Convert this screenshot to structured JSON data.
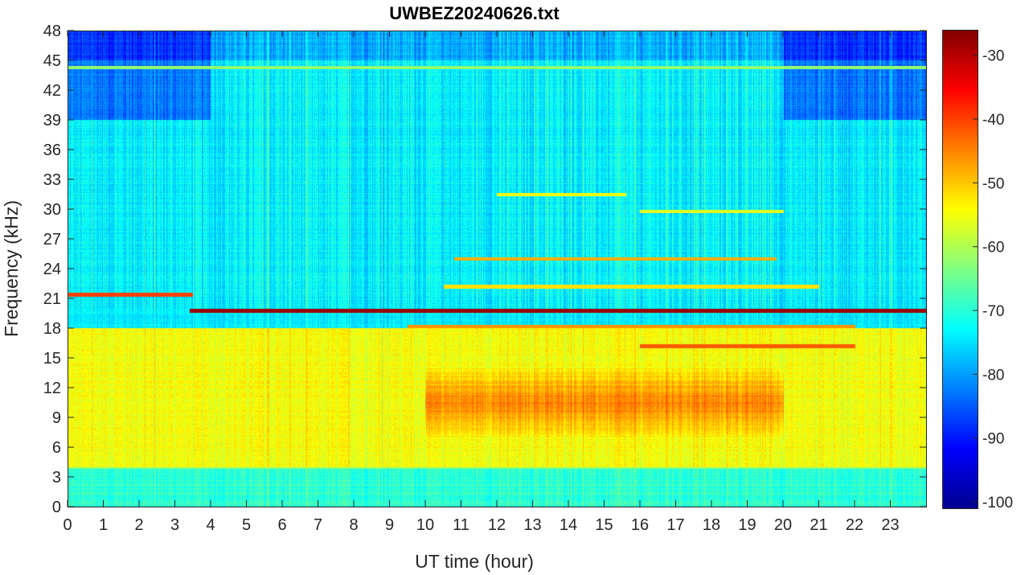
{
  "chart_data": {
    "type": "heatmap",
    "title": "UWBEZ20240626.txt",
    "xlabel": "UT time (hour)",
    "ylabel": "Frequency (kHz)",
    "xlim": [
      0,
      24
    ],
    "ylim": [
      0,
      48
    ],
    "x_ticks": [
      "0",
      "1",
      "2",
      "3",
      "4",
      "5",
      "6",
      "7",
      "8",
      "9",
      "10",
      "11",
      "12",
      "13",
      "14",
      "15",
      "16",
      "17",
      "18",
      "19",
      "20",
      "21",
      "22",
      "23"
    ],
    "y_ticks": [
      "0",
      "3",
      "6",
      "9",
      "12",
      "15",
      "18",
      "21",
      "24",
      "27",
      "30",
      "33",
      "36",
      "39",
      "42",
      "45",
      "48"
    ],
    "colormap": "jet",
    "colorbar": {
      "range": [
        -101,
        -26
      ],
      "ticks": [
        "-30",
        "-40",
        "-50",
        "-60",
        "-70",
        "-80",
        "-90",
        "-100"
      ]
    },
    "features": [
      {
        "type": "background",
        "freq_khz": [
          20,
          48
        ],
        "level_db": -74,
        "note": "weaker at 39-48 kHz outside 4-20 h"
      },
      {
        "type": "broadband",
        "freq_khz": [
          5,
          18
        ],
        "level_db": -55,
        "peak_hours": [
          10,
          20
        ],
        "peak_level_db": -45
      },
      {
        "type": "narrowband",
        "freq_khz": 19.8,
        "hours": [
          3.4,
          24
        ],
        "level_db": -28
      },
      {
        "type": "narrowband",
        "freq_khz": 21.4,
        "hours": [
          0,
          3.5
        ],
        "level_db": -40
      },
      {
        "type": "narrowband",
        "freq_khz": 18.2,
        "hours": [
          9.5,
          22
        ],
        "level_db": -46
      },
      {
        "type": "narrowband",
        "freq_khz": 25.0,
        "hours": [
          10.8,
          19.8
        ],
        "level_db": -48
      },
      {
        "type": "narrowband",
        "freq_khz": 22.2,
        "hours": [
          10.5,
          21
        ],
        "level_db": -52
      },
      {
        "type": "narrowband",
        "freq_khz": 16.2,
        "hours": [
          16,
          22
        ],
        "level_db": -42
      },
      {
        "type": "narrowband",
        "freq_khz": 31.5,
        "hours": [
          12,
          15.6
        ],
        "level_db": -55
      },
      {
        "type": "narrowband",
        "freq_khz": 29.8,
        "hours": [
          16,
          20
        ],
        "level_db": -56
      },
      {
        "type": "narrowband",
        "freq_khz": 44.3,
        "hours": [
          0,
          24
        ],
        "level_db": -62
      },
      {
        "type": "narrowband",
        "freq_khz": 4.0,
        "hours": [
          0,
          24
        ],
        "level_db": -62
      }
    ]
  }
}
